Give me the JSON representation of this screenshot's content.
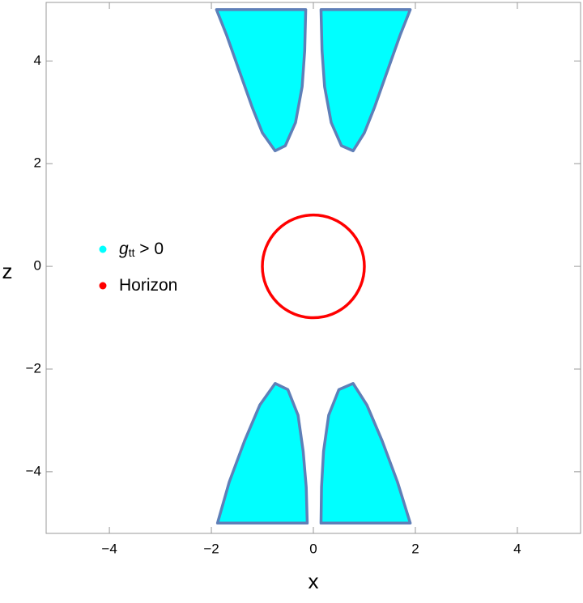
{
  "chart_data": {
    "type": "region",
    "x_label": "x",
    "y_label": "z",
    "xlim": [
      -5.24,
      5.24
    ],
    "ylim": [
      -5.2,
      5.14
    ],
    "xticks": [
      {
        "value": -4,
        "label": "−4"
      },
      {
        "value": -2,
        "label": "−2"
      },
      0,
      2,
      4
    ],
    "yticks": [
      {
        "value": -4,
        "label": "−4"
      },
      {
        "value": -2,
        "label": "−2"
      },
      0,
      2,
      4
    ],
    "legend": "left",
    "series": [
      {
        "name": [
          "g",
          "tt",
          " > 0"
        ],
        "color": "#00ffff",
        "edge_color": "#5f7fb8",
        "regions": [
          {
            "x": [
              -0.15,
              -1.9,
              -1.7,
              -1.45,
              -1.2,
              -1.0,
              -0.75,
              -0.55,
              -0.35,
              -0.22,
              -0.17
            ],
            "y": [
              5,
              5,
              4.5,
              3.8,
              3.1,
              2.6,
              2.25,
              2.35,
              2.8,
              3.5,
              4.2
            ]
          },
          {
            "x": [
              0.15,
              1.9,
              1.7,
              1.45,
              1.2,
              1.0,
              0.78,
              0.55,
              0.35,
              0.22,
              0.17
            ],
            "y": [
              5,
              5,
              4.5,
              3.8,
              3.1,
              2.6,
              2.25,
              2.35,
              2.8,
              3.5,
              4.2
            ]
          },
          {
            "x": [
              -0.12,
              -1.88,
              -1.65,
              -1.35,
              -1.05,
              -0.75,
              -0.5,
              -0.3,
              -0.2,
              -0.14
            ],
            "y": [
              -5,
              -5,
              -4.2,
              -3.4,
              -2.7,
              -2.28,
              -2.4,
              -2.9,
              -3.6,
              -4.3
            ]
          },
          {
            "x": [
              0.15,
              1.9,
              1.65,
              1.35,
              1.05,
              0.78,
              0.5,
              0.3,
              0.2,
              0.16
            ],
            "y": [
              -5,
              -5,
              -4.2,
              -3.4,
              -2.7,
              -2.28,
              -2.4,
              -2.9,
              -3.6,
              -4.3
            ]
          }
        ]
      },
      {
        "name": [
          "Horizon"
        ],
        "color": "#ff0000",
        "circle": {
          "cx": 0,
          "cy": 0,
          "r": 1
        }
      }
    ]
  }
}
